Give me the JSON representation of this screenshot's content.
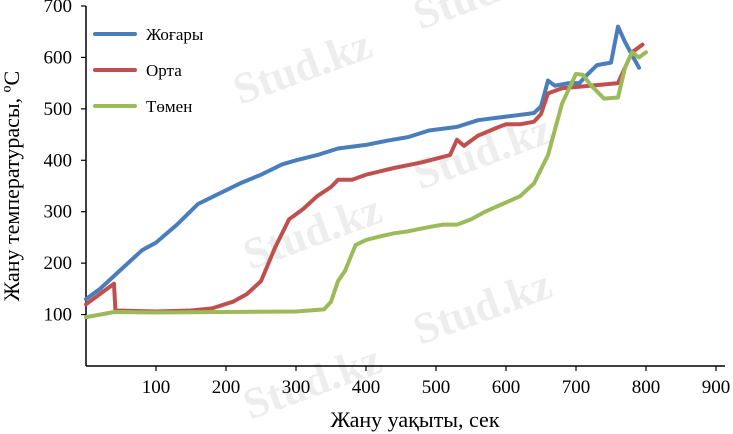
{
  "chart_data": {
    "type": "line",
    "xlabel": "Жану уақыты, сек",
    "ylabel": "Жану температурасы, ºС",
    "xlim": [
      0,
      900
    ],
    "ylim": [
      0,
      700
    ],
    "xticks": [
      100,
      200,
      300,
      400,
      500,
      600,
      700,
      800,
      900
    ],
    "yticks": [
      100,
      200,
      300,
      400,
      500,
      600,
      700
    ],
    "legend_position": "top-left",
    "grid": false,
    "watermark": "Stud.kz",
    "series": [
      {
        "name": "Жоғары",
        "color": "#4a7ebb",
        "points": [
          [
            0,
            130
          ],
          [
            20,
            150
          ],
          [
            40,
            175
          ],
          [
            60,
            200
          ],
          [
            80,
            225
          ],
          [
            100,
            240
          ],
          [
            130,
            275
          ],
          [
            160,
            315
          ],
          [
            190,
            335
          ],
          [
            220,
            355
          ],
          [
            250,
            372
          ],
          [
            280,
            392
          ],
          [
            300,
            400
          ],
          [
            330,
            410
          ],
          [
            360,
            423
          ],
          [
            400,
            430
          ],
          [
            430,
            438
          ],
          [
            460,
            445
          ],
          [
            490,
            458
          ],
          [
            530,
            465
          ],
          [
            560,
            478
          ],
          [
            600,
            485
          ],
          [
            630,
            490
          ],
          [
            640,
            492
          ],
          [
            650,
            505
          ],
          [
            660,
            555
          ],
          [
            670,
            545
          ],
          [
            690,
            550
          ],
          [
            705,
            550
          ],
          [
            715,
            565
          ],
          [
            730,
            585
          ],
          [
            750,
            590
          ],
          [
            760,
            660
          ],
          [
            770,
            630
          ],
          [
            780,
            605
          ],
          [
            790,
            580
          ]
        ]
      },
      {
        "name": "Орта",
        "color": "#c0504d",
        "points": [
          [
            0,
            120
          ],
          [
            20,
            140
          ],
          [
            35,
            155
          ],
          [
            40,
            160
          ],
          [
            42,
            108
          ],
          [
            100,
            106
          ],
          [
            150,
            108
          ],
          [
            180,
            112
          ],
          [
            210,
            125
          ],
          [
            230,
            140
          ],
          [
            250,
            165
          ],
          [
            270,
            230
          ],
          [
            290,
            285
          ],
          [
            310,
            305
          ],
          [
            330,
            330
          ],
          [
            350,
            348
          ],
          [
            360,
            362
          ],
          [
            380,
            362
          ],
          [
            400,
            372
          ],
          [
            440,
            385
          ],
          [
            480,
            396
          ],
          [
            520,
            410
          ],
          [
            530,
            440
          ],
          [
            540,
            428
          ],
          [
            560,
            448
          ],
          [
            590,
            465
          ],
          [
            600,
            470
          ],
          [
            620,
            470
          ],
          [
            640,
            475
          ],
          [
            650,
            490
          ],
          [
            660,
            530
          ],
          [
            680,
            540
          ],
          [
            720,
            545
          ],
          [
            760,
            550
          ],
          [
            780,
            610
          ],
          [
            795,
            625
          ]
        ]
      },
      {
        "name": "Төмен",
        "color": "#9bbb59",
        "points": [
          [
            0,
            95
          ],
          [
            20,
            100
          ],
          [
            40,
            105
          ],
          [
            100,
            104
          ],
          [
            200,
            105
          ],
          [
            300,
            106
          ],
          [
            340,
            110
          ],
          [
            350,
            125
          ],
          [
            360,
            165
          ],
          [
            370,
            185
          ],
          [
            385,
            235
          ],
          [
            400,
            245
          ],
          [
            420,
            252
          ],
          [
            440,
            258
          ],
          [
            460,
            262
          ],
          [
            490,
            270
          ],
          [
            510,
            275
          ],
          [
            530,
            275
          ],
          [
            550,
            285
          ],
          [
            570,
            300
          ],
          [
            600,
            318
          ],
          [
            620,
            330
          ],
          [
            640,
            355
          ],
          [
            660,
            410
          ],
          [
            680,
            510
          ],
          [
            700,
            568
          ],
          [
            710,
            566
          ],
          [
            720,
            548
          ],
          [
            740,
            520
          ],
          [
            760,
            522
          ],
          [
            770,
            580
          ],
          [
            780,
            610
          ],
          [
            790,
            600
          ],
          [
            800,
            610
          ]
        ]
      }
    ]
  }
}
